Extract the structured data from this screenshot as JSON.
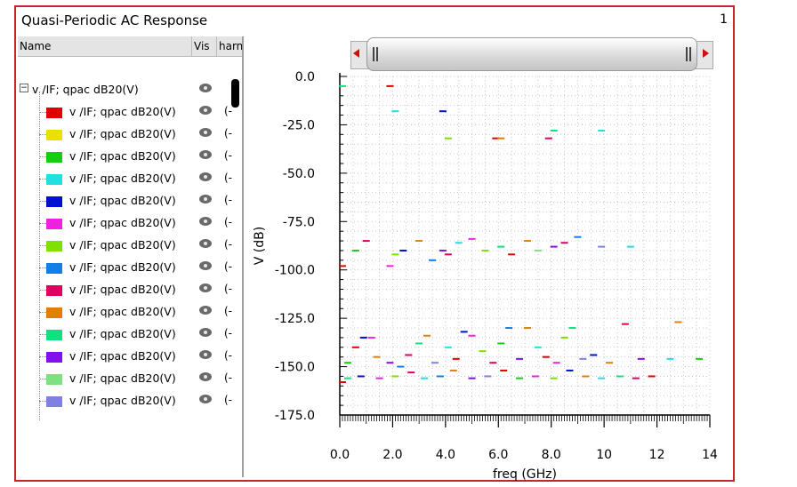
{
  "window": {
    "title": "Quasi-Periodic AC Response",
    "subwindow_number": "1"
  },
  "tree": {
    "columns": [
      "Name",
      "Vis",
      "harn"
    ],
    "group_label": "v /IF; qpac dB20(V)",
    "rows": [
      {
        "label": "v /IF; qpac dB20(V)",
        "color": "#e00000",
        "harm": "(-"
      },
      {
        "label": "v /IF; qpac dB20(V)",
        "color": "#e8e000",
        "harm": "(-"
      },
      {
        "label": "v /IF; qpac dB20(V)",
        "color": "#10d010",
        "harm": "(-"
      },
      {
        "label": "v /IF; qpac dB20(V)",
        "color": "#20e0e0",
        "harm": "(-"
      },
      {
        "label": "v /IF; qpac dB20(V)",
        "color": "#0010d0",
        "harm": "(-"
      },
      {
        "label": "v /IF; qpac dB20(V)",
        "color": "#f020e0",
        "harm": "(-"
      },
      {
        "label": "v /IF; qpac dB20(V)",
        "color": "#80e000",
        "harm": "(-"
      },
      {
        "label": "v /IF; qpac dB20(V)",
        "color": "#1080e8",
        "harm": "(-"
      },
      {
        "label": "v /IF; qpac dB20(V)",
        "color": "#e00060",
        "harm": "(-"
      },
      {
        "label": "v /IF; qpac dB20(V)",
        "color": "#e08000",
        "harm": "(-"
      },
      {
        "label": "v /IF; qpac dB20(V)",
        "color": "#10e080",
        "harm": "(-"
      },
      {
        "label": "v /IF; qpac dB20(V)",
        "color": "#8010f0",
        "harm": "(-"
      },
      {
        "label": "v /IF; qpac dB20(V)",
        "color": "#80e080",
        "harm": "(-"
      },
      {
        "label": "v /IF; qpac dB20(V)",
        "color": "#8080e0",
        "harm": "(-"
      }
    ]
  },
  "chart_data": {
    "type": "scatter",
    "title": "",
    "xlabel": "freq (GHz)",
    "ylabel": "V (dB)",
    "xlim": [
      0,
      14
    ],
    "ylim": [
      -175,
      0
    ],
    "x_ticks": [
      "0.0",
      "2.0",
      "4.0",
      "6.0",
      "8.0",
      "10",
      "12",
      "14"
    ],
    "x_tick_values": [
      0,
      2,
      4,
      6,
      8,
      10,
      12,
      14
    ],
    "y_ticks": [
      "0.0",
      "-25.0",
      "-50.0",
      "-75.0",
      "-100.0",
      "-125.0",
      "-150.0",
      "-175.0"
    ],
    "y_tick_values": [
      0,
      -25,
      -50,
      -75,
      -100,
      -125,
      -150,
      -175
    ],
    "grid": true,
    "points": [
      {
        "x": 0.1,
        "y": -5,
        "color": "#10e080"
      },
      {
        "x": 1.9,
        "y": -5,
        "color": "#e00000"
      },
      {
        "x": 2.1,
        "y": -18,
        "color": "#20e0e0"
      },
      {
        "x": 3.9,
        "y": -18,
        "color": "#0010d0"
      },
      {
        "x": 4.1,
        "y": -32,
        "color": "#80e000"
      },
      {
        "x": 5.9,
        "y": -32,
        "color": "#e00000"
      },
      {
        "x": 6.1,
        "y": -32,
        "color": "#e08000"
      },
      {
        "x": 7.9,
        "y": -32,
        "color": "#e00060"
      },
      {
        "x": 8.1,
        "y": -28,
        "color": "#10e080"
      },
      {
        "x": 9.9,
        "y": -28,
        "color": "#20e0e0"
      },
      {
        "x": 0.1,
        "y": -98,
        "color": "#e00000"
      },
      {
        "x": 0.6,
        "y": -90,
        "color": "#10d010"
      },
      {
        "x": 1.0,
        "y": -85,
        "color": "#e00060"
      },
      {
        "x": 1.9,
        "y": -98,
        "color": "#f020e0"
      },
      {
        "x": 2.1,
        "y": -92,
        "color": "#80e000"
      },
      {
        "x": 2.4,
        "y": -90,
        "color": "#0010d0"
      },
      {
        "x": 3.0,
        "y": -85,
        "color": "#e08000"
      },
      {
        "x": 3.5,
        "y": -95,
        "color": "#1080e8"
      },
      {
        "x": 3.9,
        "y": -90,
        "color": "#8010f0"
      },
      {
        "x": 4.1,
        "y": -92,
        "color": "#e00060"
      },
      {
        "x": 4.5,
        "y": -86,
        "color": "#20e0e0"
      },
      {
        "x": 5.0,
        "y": -84,
        "color": "#f020e0"
      },
      {
        "x": 5.5,
        "y": -90,
        "color": "#80e000"
      },
      {
        "x": 6.1,
        "y": -88,
        "color": "#10e080"
      },
      {
        "x": 6.5,
        "y": -92,
        "color": "#e00000"
      },
      {
        "x": 7.1,
        "y": -85,
        "color": "#e08000"
      },
      {
        "x": 7.5,
        "y": -90,
        "color": "#80e080"
      },
      {
        "x": 8.1,
        "y": -88,
        "color": "#8010f0"
      },
      {
        "x": 8.5,
        "y": -86,
        "color": "#e00060"
      },
      {
        "x": 9.0,
        "y": -83,
        "color": "#1080e8"
      },
      {
        "x": 9.9,
        "y": -88,
        "color": "#8080e0"
      },
      {
        "x": 11.0,
        "y": -88,
        "color": "#20e0e0"
      },
      {
        "x": 0.3,
        "y": -148,
        "color": "#10d010"
      },
      {
        "x": 0.6,
        "y": -140,
        "color": "#e00000"
      },
      {
        "x": 0.9,
        "y": -135,
        "color": "#0010d0"
      },
      {
        "x": 1.2,
        "y": -135,
        "color": "#f020e0"
      },
      {
        "x": 1.4,
        "y": -145,
        "color": "#e08000"
      },
      {
        "x": 1.9,
        "y": -148,
        "color": "#8010f0"
      },
      {
        "x": 2.3,
        "y": -150,
        "color": "#1080e8"
      },
      {
        "x": 2.6,
        "y": -144,
        "color": "#e00060"
      },
      {
        "x": 3.0,
        "y": -138,
        "color": "#10e080"
      },
      {
        "x": 3.3,
        "y": -134,
        "color": "#e08000"
      },
      {
        "x": 3.6,
        "y": -148,
        "color": "#8080e0"
      },
      {
        "x": 4.1,
        "y": -140,
        "color": "#20e0e0"
      },
      {
        "x": 4.4,
        "y": -146,
        "color": "#e00000"
      },
      {
        "x": 4.7,
        "y": -132,
        "color": "#0010d0"
      },
      {
        "x": 5.0,
        "y": -134,
        "color": "#f020e0"
      },
      {
        "x": 5.4,
        "y": -142,
        "color": "#80e000"
      },
      {
        "x": 5.8,
        "y": -148,
        "color": "#e00060"
      },
      {
        "x": 6.1,
        "y": -138,
        "color": "#10d010"
      },
      {
        "x": 6.4,
        "y": -130,
        "color": "#1080e8"
      },
      {
        "x": 6.8,
        "y": -146,
        "color": "#8010f0"
      },
      {
        "x": 7.1,
        "y": -130,
        "color": "#e08000"
      },
      {
        "x": 7.5,
        "y": -140,
        "color": "#20e0e0"
      },
      {
        "x": 7.8,
        "y": -145,
        "color": "#e00000"
      },
      {
        "x": 8.2,
        "y": -148,
        "color": "#f020e0"
      },
      {
        "x": 8.5,
        "y": -135,
        "color": "#80e000"
      },
      {
        "x": 8.8,
        "y": -130,
        "color": "#10e080"
      },
      {
        "x": 9.2,
        "y": -146,
        "color": "#8080e0"
      },
      {
        "x": 9.6,
        "y": -144,
        "color": "#0010d0"
      },
      {
        "x": 10.2,
        "y": -148,
        "color": "#e08000"
      },
      {
        "x": 10.8,
        "y": -128,
        "color": "#e00060"
      },
      {
        "x": 11.4,
        "y": -146,
        "color": "#8010f0"
      },
      {
        "x": 12.5,
        "y": -146,
        "color": "#20e0e0"
      },
      {
        "x": 12.8,
        "y": -127,
        "color": "#e08000"
      },
      {
        "x": 13.6,
        "y": -146,
        "color": "#10d010"
      },
      {
        "x": 0.1,
        "y": -158,
        "color": "#e00000"
      },
      {
        "x": 0.3,
        "y": -156,
        "color": "#10e080"
      },
      {
        "x": 0.8,
        "y": -155,
        "color": "#0010d0"
      },
      {
        "x": 1.5,
        "y": -156,
        "color": "#f020e0"
      },
      {
        "x": 2.1,
        "y": -155,
        "color": "#80e000"
      },
      {
        "x": 2.7,
        "y": -153,
        "color": "#e00060"
      },
      {
        "x": 3.2,
        "y": -156,
        "color": "#20e0e0"
      },
      {
        "x": 3.8,
        "y": -155,
        "color": "#1080e8"
      },
      {
        "x": 4.3,
        "y": -152,
        "color": "#e08000"
      },
      {
        "x": 5.0,
        "y": -156,
        "color": "#8010f0"
      },
      {
        "x": 5.6,
        "y": -155,
        "color": "#8080e0"
      },
      {
        "x": 6.2,
        "y": -152,
        "color": "#e00000"
      },
      {
        "x": 6.8,
        "y": -156,
        "color": "#10d010"
      },
      {
        "x": 7.4,
        "y": -155,
        "color": "#f020e0"
      },
      {
        "x": 8.1,
        "y": -156,
        "color": "#80e000"
      },
      {
        "x": 8.7,
        "y": -152,
        "color": "#0010d0"
      },
      {
        "x": 9.3,
        "y": -155,
        "color": "#e08000"
      },
      {
        "x": 9.9,
        "y": -156,
        "color": "#20e0e0"
      },
      {
        "x": 10.6,
        "y": -155,
        "color": "#10e080"
      },
      {
        "x": 11.2,
        "y": -156,
        "color": "#e00060"
      },
      {
        "x": 11.8,
        "y": -155,
        "color": "#e00000"
      }
    ]
  }
}
